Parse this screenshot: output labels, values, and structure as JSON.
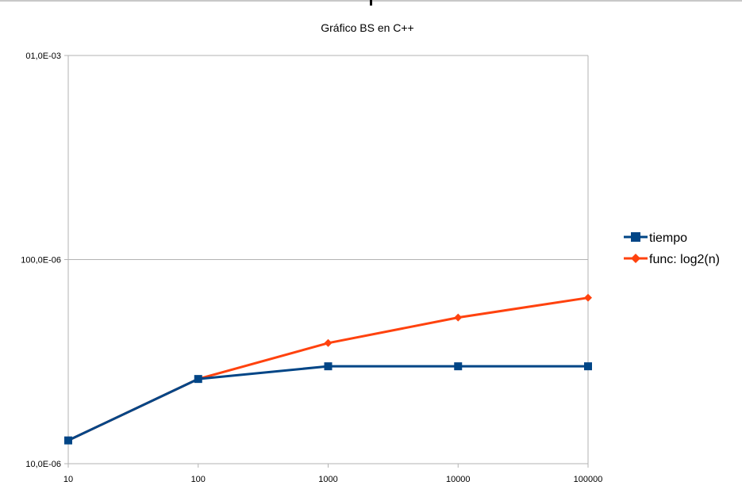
{
  "chart_data": {
    "type": "line",
    "title": "Gráfico BS en C++",
    "x_scale": "log",
    "y_scale": "log",
    "x": [
      10,
      100,
      1000,
      10000,
      100000
    ],
    "x_tick_labels": [
      "10",
      "100",
      "1000",
      "10000",
      "100000"
    ],
    "y_tick_values": [
      1e-05,
      0.0001,
      0.001
    ],
    "y_tick_labels": [
      "10,0E-06",
      "100,0E-06",
      "01,0E-03"
    ],
    "ylim": [
      1e-05,
      0.001
    ],
    "grid": "horizontal",
    "legend_position": "right",
    "series": [
      {
        "name": "tiempo",
        "color": "#004586",
        "marker": "square",
        "values": [
          1.3e-05,
          2.6e-05,
          3e-05,
          3e-05,
          3e-05
        ]
      },
      {
        "name": "func: log2(n)",
        "color": "#ff420e",
        "marker": "diamond",
        "values": [
          1.3e-05,
          2.6e-05,
          3.9e-05,
          5.2e-05,
          6.5e-05
        ]
      }
    ]
  }
}
